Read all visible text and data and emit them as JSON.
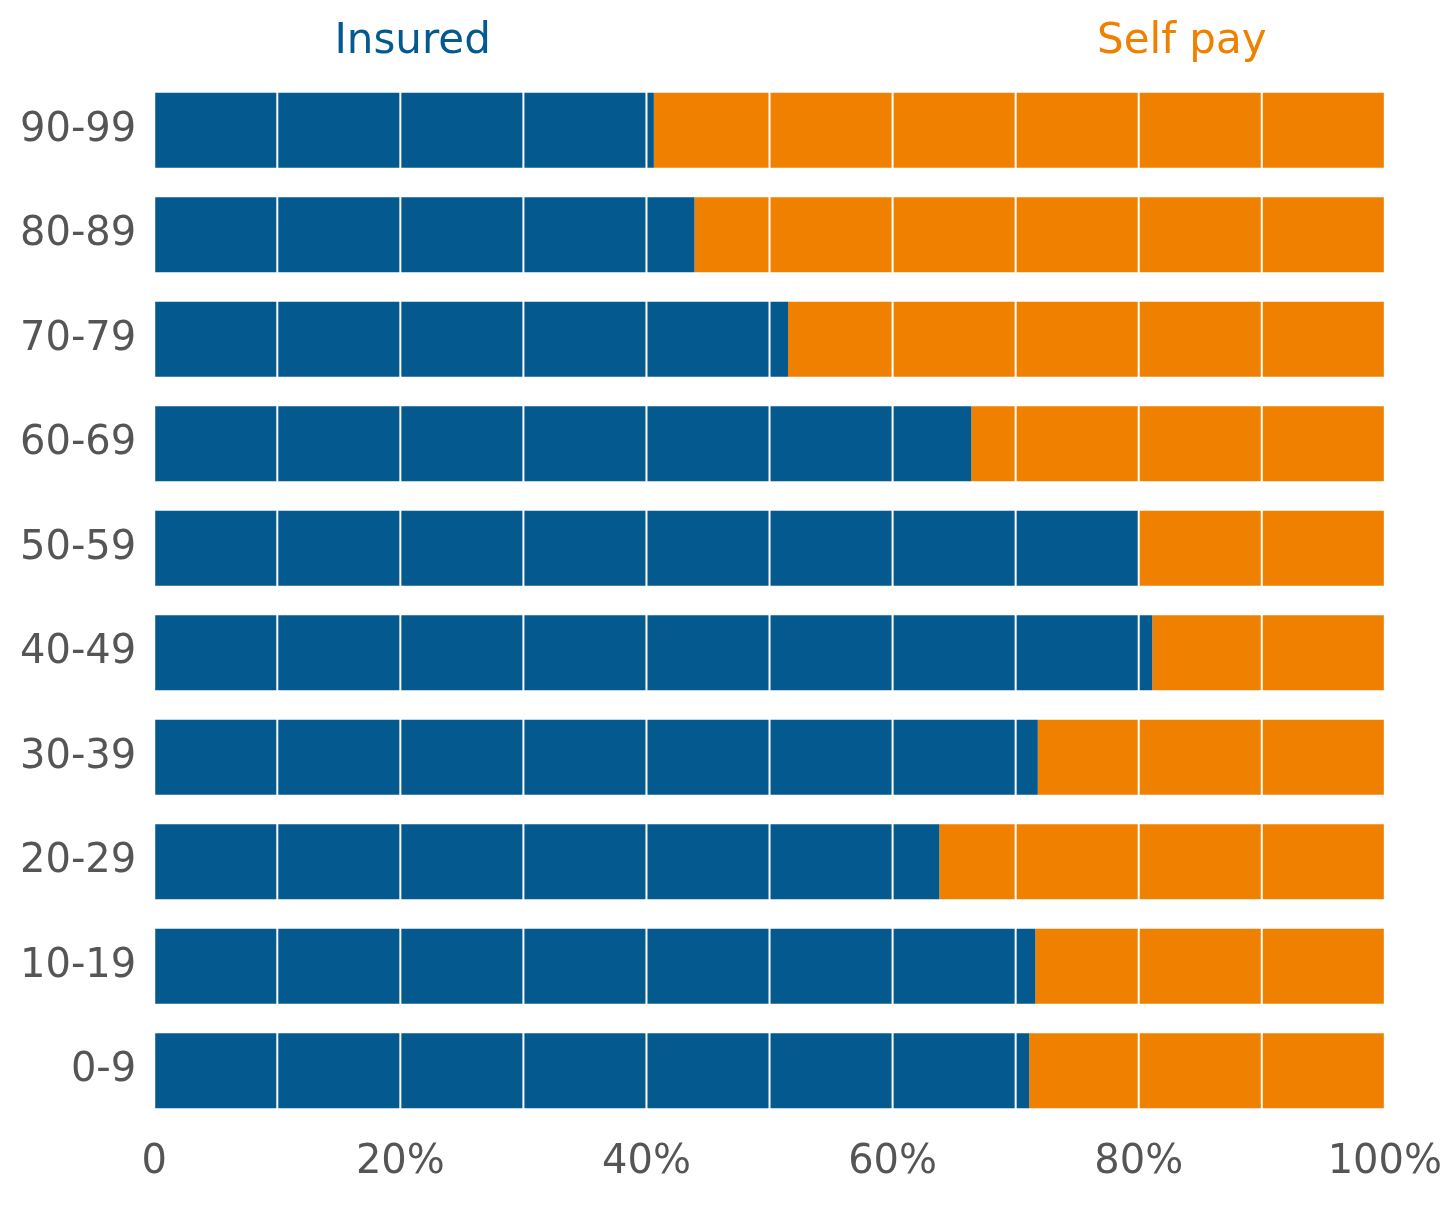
{
  "chart_data": {
    "type": "bar",
    "orientation": "horizontal",
    "stacked": true,
    "categories": [
      "90-99",
      "80-89",
      "70-79",
      "60-69",
      "50-59",
      "40-49",
      "30-39",
      "20-29",
      "10-19",
      "0-9"
    ],
    "series": [
      {
        "name": "Insured",
        "color": "#045a8f",
        "values": [
          40.6,
          43.9,
          51.5,
          66.4,
          80.0,
          81.1,
          71.8,
          63.8,
          71.6,
          71.1
        ]
      },
      {
        "name": "Self pay",
        "color": "#f08000",
        "values": [
          59.4,
          56.1,
          48.5,
          33.6,
          20.0,
          18.9,
          28.2,
          36.2,
          28.4,
          28.9
        ]
      }
    ],
    "xlim": [
      0,
      100
    ],
    "xticks": [
      {
        "value": 0,
        "label": "0"
      },
      {
        "value": 10,
        "label": null
      },
      {
        "value": 20,
        "label": "20%"
      },
      {
        "value": 30,
        "label": null
      },
      {
        "value": 40,
        "label": "40%"
      },
      {
        "value": 50,
        "label": null
      },
      {
        "value": 60,
        "label": "60%"
      },
      {
        "value": 70,
        "label": null
      },
      {
        "value": 80,
        "label": "80%"
      },
      {
        "value": 90,
        "label": null
      },
      {
        "value": 100,
        "label": "100%"
      }
    ],
    "grid": "x",
    "legend": "top"
  }
}
